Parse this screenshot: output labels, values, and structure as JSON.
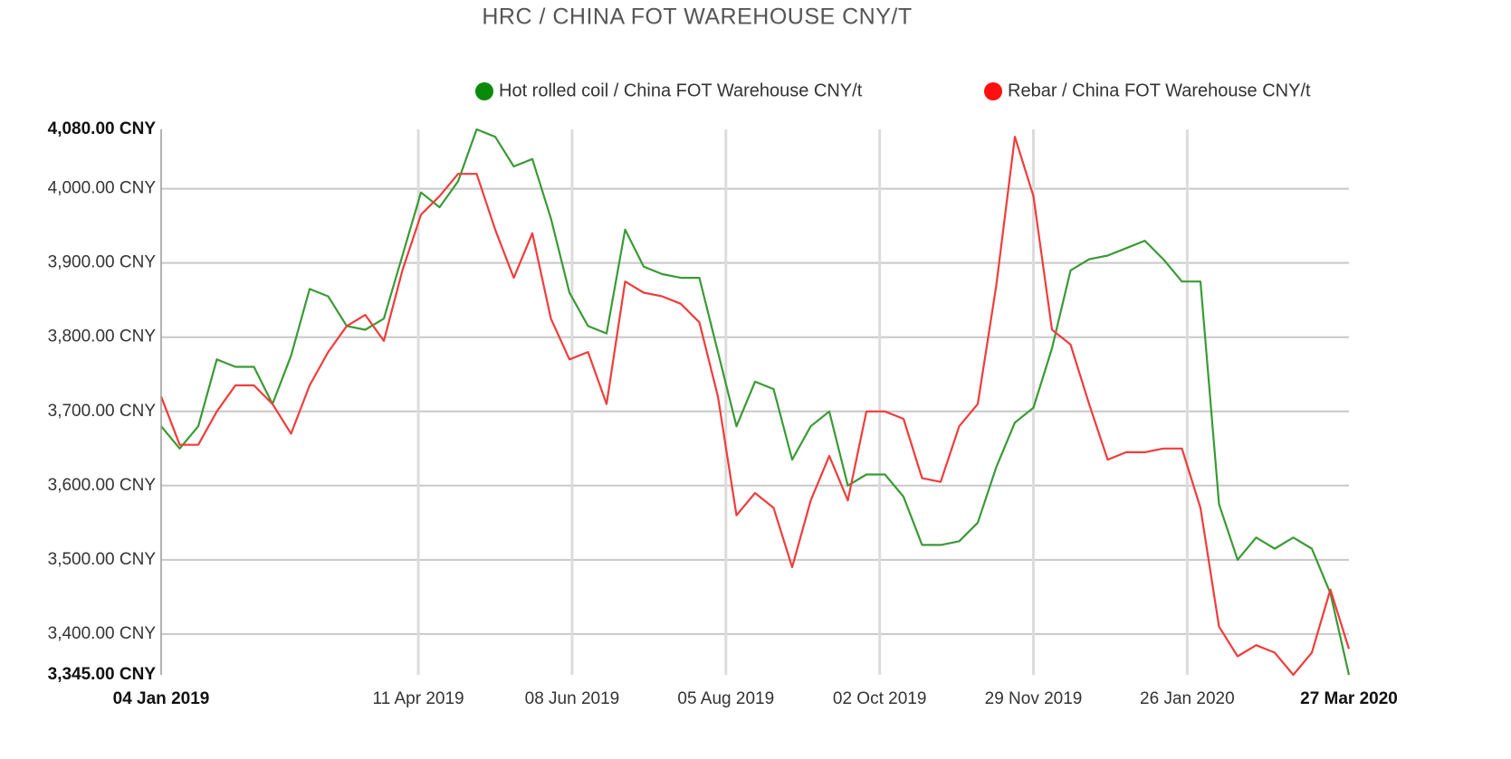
{
  "chart_data": {
    "type": "line",
    "title": "HRC / CHINA FOT WAREHOUSE CNY/T",
    "x": [
      "2019-01-04",
      "2019-01-11",
      "2019-01-18",
      "2019-01-25",
      "2019-02-01",
      "2019-02-08",
      "2019-02-15",
      "2019-02-22",
      "2019-03-01",
      "2019-03-08",
      "2019-03-15",
      "2019-03-22",
      "2019-03-29",
      "2019-04-05",
      "2019-04-12",
      "2019-04-19",
      "2019-04-26",
      "2019-05-03",
      "2019-05-10",
      "2019-05-17",
      "2019-05-24",
      "2019-05-31",
      "2019-06-07",
      "2019-06-14",
      "2019-06-21",
      "2019-06-28",
      "2019-07-05",
      "2019-07-12",
      "2019-07-19",
      "2019-07-26",
      "2019-08-02",
      "2019-08-09",
      "2019-08-16",
      "2019-08-23",
      "2019-08-30",
      "2019-09-06",
      "2019-09-13",
      "2019-09-20",
      "2019-09-27",
      "2019-10-04",
      "2019-10-11",
      "2019-10-18",
      "2019-10-25",
      "2019-11-01",
      "2019-11-08",
      "2019-11-15",
      "2019-11-22",
      "2019-11-29",
      "2019-12-06",
      "2019-12-13",
      "2019-12-20",
      "2019-12-27",
      "2020-01-03",
      "2020-01-10",
      "2020-01-17",
      "2020-01-24",
      "2020-01-31",
      "2020-02-07",
      "2020-02-14",
      "2020-02-21",
      "2020-02-28",
      "2020-03-06",
      "2020-03-13",
      "2020-03-20",
      "2020-03-27"
    ],
    "series": [
      {
        "name": "Hot rolled coil / China FOT Warehouse CNY/t",
        "color": "#3a9a35",
        "values": [
          3680,
          3650,
          3680,
          3770,
          3760,
          3760,
          3710,
          3775,
          3865,
          3855,
          3815,
          3810,
          3825,
          3910,
          3995,
          3975,
          4010,
          4080,
          4070,
          4030,
          4040,
          3960,
          3860,
          3815,
          3805,
          3945,
          3895,
          3885,
          3880,
          3880,
          3780,
          3680,
          3740,
          3730,
          3635,
          3680,
          3700,
          3600,
          3615,
          3615,
          3585,
          3520,
          3520,
          3525,
          3550,
          3625,
          3685,
          3705,
          3785,
          3890,
          3905,
          3910,
          3920,
          3930,
          3905,
          3875,
          3875,
          3575,
          3500,
          3530,
          3515,
          3530,
          3515,
          3455,
          3345
        ]
      },
      {
        "name": "Rebar / China FOT Warehouse CNY/t",
        "color": "#f03c3c",
        "values": [
          3720,
          3655,
          3655,
          3700,
          3735,
          3735,
          3710,
          3670,
          3735,
          3780,
          3815,
          3830,
          3795,
          3890,
          3965,
          3990,
          4020,
          4020,
          3945,
          3880,
          3940,
          3825,
          3770,
          3780,
          3710,
          3875,
          3860,
          3855,
          3845,
          3820,
          3720,
          3560,
          3590,
          3570,
          3490,
          3580,
          3640,
          3580,
          3700,
          3700,
          3690,
          3610,
          3605,
          3680,
          3710,
          3870,
          4070,
          3990,
          3810,
          3790,
          3710,
          3635,
          3645,
          3645,
          3650,
          3650,
          3570,
          3410,
          3370,
          3385,
          3375,
          3345,
          3375,
          3460,
          3380
        ]
      }
    ],
    "legend_marker_colors": [
      "#0a8a0a",
      "#ff1010"
    ],
    "xlim": [
      "2019-01-04",
      "2020-03-27"
    ],
    "xticks": [
      {
        "value": "2019-01-04",
        "label": "04 Jan 2019"
      },
      {
        "value": "2019-04-11",
        "label": "11 Apr 2019"
      },
      {
        "value": "2019-06-08",
        "label": "08 Jun 2019"
      },
      {
        "value": "2019-08-05",
        "label": "05 Aug 2019"
      },
      {
        "value": "2019-10-02",
        "label": "02 Oct 2019"
      },
      {
        "value": "2019-11-29",
        "label": "29 Nov 2019"
      },
      {
        "value": "2020-01-26",
        "label": "26 Jan 2020"
      },
      {
        "value": "2020-03-27",
        "label": "27 Mar 2020"
      }
    ],
    "ylim": [
      3345,
      4080
    ],
    "yticks": [
      {
        "value": 3345,
        "label": "3,345.00 CNY"
      },
      {
        "value": 3400,
        "label": "3,400.00 CNY"
      },
      {
        "value": 3500,
        "label": "3,500.00 CNY"
      },
      {
        "value": 3600,
        "label": "3,600.00 CNY"
      },
      {
        "value": 3700,
        "label": "3,700.00 CNY"
      },
      {
        "value": 3800,
        "label": "3,800.00 CNY"
      },
      {
        "value": 3900,
        "label": "3,900.00 CNY"
      },
      {
        "value": 4000,
        "label": "4,000.00 CNY"
      },
      {
        "value": 4080,
        "label": "4,080.00 CNY"
      }
    ],
    "grid": true
  }
}
